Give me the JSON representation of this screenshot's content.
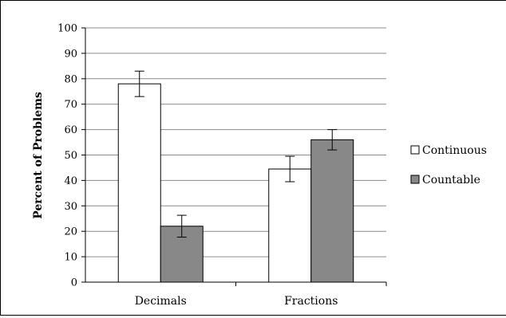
{
  "chart_data": {
    "type": "bar",
    "title": "",
    "xlabel": "",
    "ylabel": "Percent of Problems",
    "ylim": [
      0,
      100
    ],
    "yticks": [
      0,
      10,
      20,
      30,
      40,
      50,
      60,
      70,
      80,
      90,
      100
    ],
    "categories": [
      "Decimals",
      "Fractions"
    ],
    "grid": true,
    "legend_position": "right",
    "series": [
      {
        "name": "Continuous",
        "color": "#ffffff",
        "values": [
          78,
          44.5
        ],
        "error": [
          5,
          5
        ]
      },
      {
        "name": "Countable",
        "color": "#888888",
        "values": [
          22,
          56
        ],
        "error": [
          4.3,
          4
        ]
      }
    ]
  }
}
